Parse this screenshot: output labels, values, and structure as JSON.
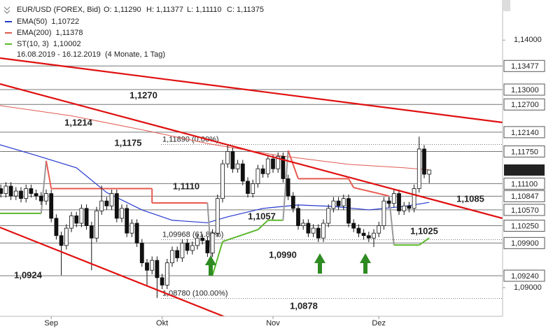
{
  "chart_data": {
    "type": "candlestick",
    "title": "EUR/USD (FOREX, Bid)",
    "ohlc_header": [
      "O: 1,11290",
      "H: 1,11377",
      "L: 1,11110",
      "C: 1,11375"
    ],
    "period": "16.08.2019 - 16.12.2019",
    "period_note": "(4 Monate, 1 Tag)",
    "categories": [
      null,
      null,
      null,
      null,
      null,
      null,
      null,
      null,
      null,
      null,
      null,
      "Sep",
      null,
      null,
      null,
      null,
      null,
      null,
      null,
      null,
      null,
      null,
      null,
      null,
      null,
      null,
      null,
      null,
      null,
      null,
      null,
      null,
      null,
      "Okt",
      null,
      null,
      null,
      null,
      null,
      null,
      null,
      null,
      null,
      null,
      null,
      null,
      null,
      null,
      null,
      null,
      null,
      null,
      null,
      null,
      null,
      "Nov",
      null,
      null,
      null,
      null,
      null,
      null,
      null,
      null,
      null,
      null,
      null,
      null,
      null,
      null,
      null,
      null,
      null,
      null,
      null,
      null,
      "Dez",
      null,
      null,
      null,
      null,
      null,
      null,
      null,
      null,
      null,
      null
    ],
    "ohlc": [
      [
        1.1095,
        1.1108,
        1.1087,
        1.11
      ],
      [
        1.11,
        1.1108,
        1.1082,
        1.109
      ],
      [
        1.109,
        1.1113,
        1.1082,
        1.1105
      ],
      [
        1.1105,
        1.1113,
        1.1077,
        1.1085
      ],
      [
        1.1085,
        1.1103,
        1.1077,
        1.1095
      ],
      [
        1.1095,
        1.1103,
        1.1072,
        1.108
      ],
      [
        1.108,
        1.1108,
        1.1072,
        1.11
      ],
      [
        1.11,
        1.1108,
        1.1082,
        1.109
      ],
      [
        1.109,
        1.1098,
        1.1077,
        1.1085
      ],
      [
        1.1085,
        1.1093,
        1.1067,
        1.1075
      ],
      [
        1.1075,
        1.1098,
        1.1067,
        1.109
      ],
      [
        1.109,
        1.1098,
        1.1032,
        1.104
      ],
      [
        1.104,
        1.1048,
        1.0997,
        1.1005
      ],
      [
        1.1005,
        1.1013,
        1.0925,
        1.0985
      ],
      [
        1.0985,
        1.1028,
        1.0977,
        1.102
      ],
      [
        1.102,
        1.1053,
        1.1012,
        1.1045
      ],
      [
        1.1045,
        1.1053,
        1.1022,
        1.103
      ],
      [
        1.103,
        1.1068,
        1.1022,
        1.106
      ],
      [
        1.106,
        1.1068,
        1.1017,
        1.1025
      ],
      [
        1.1025,
        1.1033,
        1.0935,
        1.1
      ],
      [
        1.1,
        1.1063,
        1.0992,
        1.1055
      ],
      [
        1.1055,
        1.1106,
        1.1047,
        1.1075
      ],
      [
        1.1075,
        1.1083,
        1.1057,
        1.1065
      ],
      [
        1.1065,
        1.1098,
        1.1057,
        1.109
      ],
      [
        1.109,
        1.1098,
        1.1032,
        1.104
      ],
      [
        1.104,
        1.1068,
        1.1032,
        1.106
      ],
      [
        1.106,
        1.1068,
        1.1002,
        1.101
      ],
      [
        1.101,
        1.1038,
        1.1002,
        1.103
      ],
      [
        1.103,
        1.1038,
        1.0982,
        1.099
      ],
      [
        1.099,
        1.0998,
        1.0942,
        1.095
      ],
      [
        1.095,
        1.0958,
        1.0905,
        1.0935
      ],
      [
        1.0935,
        1.0963,
        1.0927,
        1.0955
      ],
      [
        1.0955,
        1.0963,
        1.0879,
        1.092
      ],
      [
        1.092,
        1.0928,
        1.0897,
        1.0905
      ],
      [
        1.0905,
        1.0958,
        1.0897,
        1.095
      ],
      [
        1.095,
        1.0983,
        1.0942,
        1.0975
      ],
      [
        1.0975,
        1.0983,
        1.0952,
        1.096
      ],
      [
        1.096,
        1.0998,
        1.0952,
        1.099
      ],
      [
        1.099,
        1.0998,
        1.0967,
        1.0975
      ],
      [
        1.0975,
        1.0993,
        1.0967,
        1.0985
      ],
      [
        1.0985,
        1.1008,
        1.0977,
        1.1
      ],
      [
        1.1,
        1.1008,
        1.0987,
        1.0995
      ],
      [
        1.0995,
        1.1003,
        1.0962,
        1.097
      ],
      [
        1.097,
        1.1018,
        1.0962,
        1.101
      ],
      [
        1.101,
        1.1088,
        1.1002,
        1.108
      ],
      [
        1.108,
        1.1158,
        1.1072,
        1.115
      ],
      [
        1.115,
        1.1189,
        1.1142,
        1.1175
      ],
      [
        1.1175,
        1.1183,
        1.1132,
        1.114
      ],
      [
        1.114,
        1.1158,
        1.1132,
        1.115
      ],
      [
        1.115,
        1.1158,
        1.1107,
        1.1115
      ],
      [
        1.1115,
        1.1123,
        1.1082,
        1.109
      ],
      [
        1.109,
        1.1118,
        1.1082,
        1.111
      ],
      [
        1.111,
        1.1148,
        1.1102,
        1.114
      ],
      [
        1.114,
        1.1148,
        1.1122,
        1.113
      ],
      [
        1.113,
        1.1168,
        1.1122,
        1.116
      ],
      [
        1.116,
        1.1168,
        1.1132,
        1.114
      ],
      [
        1.114,
        1.1173,
        1.1132,
        1.1165
      ],
      [
        1.1165,
        1.1173,
        1.1112,
        1.112
      ],
      [
        1.112,
        1.1128,
        1.1077,
        1.1085
      ],
      [
        1.1085,
        1.1093,
        1.1052,
        1.106
      ],
      [
        1.106,
        1.1068,
        1.1017,
        1.1025
      ],
      [
        1.1025,
        1.1038,
        1.1017,
        1.103
      ],
      [
        1.103,
        1.1038,
        1.1002,
        1.101
      ],
      [
        1.101,
        1.1028,
        1.1002,
        1.102
      ],
      [
        1.102,
        1.1028,
        1.0992,
        1.1
      ],
      [
        1.1,
        1.1038,
        1.0992,
        1.103
      ],
      [
        1.103,
        1.1068,
        1.1022,
        1.106
      ],
      [
        1.106,
        1.1083,
        1.1052,
        1.1075
      ],
      [
        1.1075,
        1.1083,
        1.1057,
        1.1065
      ],
      [
        1.1065,
        1.1088,
        1.1057,
        1.108
      ],
      [
        1.108,
        1.1088,
        1.1022,
        1.103
      ],
      [
        1.103,
        1.1038,
        1.1012,
        1.102
      ],
      [
        1.102,
        1.1028,
        1.1002,
        1.101
      ],
      [
        1.101,
        1.1018,
        1.0997,
        1.1005
      ],
      [
        1.1005,
        1.1013,
        1.0992,
        1.1
      ],
      [
        1.1,
        1.1018,
        1.0982,
        1.101
      ],
      [
        1.101,
        1.1033,
        1.1002,
        1.1025
      ],
      [
        1.1025,
        1.1083,
        1.1017,
        1.1075
      ],
      [
        1.1075,
        1.1083,
        1.1062,
        1.107
      ],
      [
        1.107,
        1.1098,
        1.1062,
        1.109
      ],
      [
        1.109,
        1.1098,
        1.1047,
        1.1055
      ],
      [
        1.1055,
        1.1073,
        1.1047,
        1.1065
      ],
      [
        1.1065,
        1.1073,
        1.1052,
        1.106
      ],
      [
        1.106,
        1.1108,
        1.1052,
        1.11
      ],
      [
        1.11,
        1.1205,
        1.1092,
        1.118
      ],
      [
        1.118,
        1.1188,
        1.1121,
        1.1129
      ],
      [
        1.1129,
        1.11377,
        1.1111,
        1.11375
      ]
    ],
    "series": [
      {
        "name": "EMA(50)",
        "legend_value": "1,10722",
        "color": "#2438d0",
        "x": [
          0,
          8,
          16,
          22,
          29,
          35,
          42,
          46,
          53,
          60,
          67,
          74,
          81,
          86
        ],
        "values": [
          1.1191,
          1.1167,
          1.1142,
          1.1092,
          1.1057,
          1.1036,
          1.1031,
          1.1043,
          1.106,
          1.1067,
          1.1064,
          1.1057,
          1.1064,
          1.10722
        ]
      },
      {
        "name": "EMA(200)",
        "legend_value": "1,11378",
        "color": "#e05a50",
        "x": [
          0,
          15,
          29,
          42,
          56,
          70,
          81,
          86
        ],
        "values": [
          1.1269,
          1.1247,
          1.1219,
          1.1191,
          1.1167,
          1.1149,
          1.1142,
          1.11378
        ]
      },
      {
        "name": "ST(10, 3)",
        "legend_value": "1,10002",
        "color": "#5cb82e",
        "x": [
          0,
          9,
          10,
          11,
          31,
          31,
          42,
          43,
          45,
          52,
          54,
          57,
          58,
          60,
          70,
          71,
          76,
          78,
          79,
          84,
          86
        ],
        "values": [
          1.105,
          1.105,
          1.1156,
          1.11,
          1.11,
          1.1071,
          1.1071,
          1.0925,
          1.0993,
          1.1017,
          1.1036,
          1.1036,
          1.1177,
          1.112,
          1.112,
          1.1102,
          1.109,
          1.1085,
          1.0986,
          1.0986,
          1.10002
        ],
        "segment_colors": [
          "#5cb82e",
          "#999999",
          "#e85a50",
          "#e85a50",
          "#e85a50",
          "#e85a50",
          "#999999",
          "#5cb82e",
          "#5cb82e",
          "#5cb82e",
          "#5cb82e",
          "#999999",
          "#e85a50",
          "#e85a50",
          "#e85a50",
          "#e85a50",
          "#e85a50",
          "#999999",
          "#5cb82e",
          "#5cb82e"
        ]
      }
    ],
    "ylim": [
      1.0842,
      1.1481
    ],
    "yticks": [
      {
        "value": 1.14,
        "label": "1,14000"
      },
      {
        "value": 1.09,
        "label": "1,09000"
      }
    ],
    "levels": [
      {
        "value": 1.13477,
        "label": "1,13477"
      },
      {
        "value": 1.13,
        "label": "1,13000"
      },
      {
        "value": 1.127,
        "label": "1,12700"
      },
      {
        "value": 1.1214,
        "label": "1,12140"
      },
      {
        "value": 1.1175,
        "label": "1,11750"
      },
      {
        "value": 1.111,
        "label": "1,11100"
      },
      {
        "value": 1.10847,
        "label": "1,10847"
      },
      {
        "value": 1.1057,
        "label": "1,10570"
      },
      {
        "value": 1.1025,
        "label": "1,10250"
      },
      {
        "value": 1.099,
        "label": "1,09900"
      },
      {
        "value": 1.0924,
        "label": "1,09240"
      }
    ],
    "current": {
      "value": 1.11375,
      "label": "1,11375"
    },
    "fibonacci": [
      {
        "value": 1.1189,
        "label": "1,11890 (0.00%)"
      },
      {
        "value": 1.09968,
        "label": "1,09968 (61.80%)"
      },
      {
        "value": 1.0878,
        "label": "1,08780 (100.00%)"
      }
    ],
    "annotations": [
      {
        "text": "1,1270",
        "color": "#e00000"
      },
      {
        "text": "1,1214",
        "color": "#e00000"
      },
      {
        "text": "1,1175",
        "color": "#e00000"
      },
      {
        "text": "1,1110",
        "color": "#2e8b22"
      },
      {
        "text": "1,1057",
        "color": "#2e8b22"
      },
      {
        "text": "1,0990",
        "color": "#2e8b22"
      },
      {
        "text": "1,0924",
        "color": "#2e8b22"
      },
      {
        "text": "1,0878",
        "color": "#2e8b22"
      },
      {
        "text": "1,1085",
        "color": "#2e8b22"
      },
      {
        "text": "1,1025",
        "color": "#2e8b22"
      }
    ]
  }
}
